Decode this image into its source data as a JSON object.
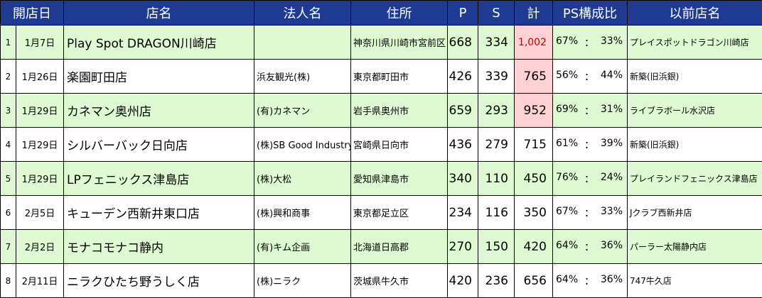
{
  "headers": {
    "date": "開店日",
    "name": "店名",
    "corp": "法人名",
    "addr": "住所",
    "p": "P",
    "s": "S",
    "total": "計",
    "ratio": "PS構成比",
    "prev": "以前店名"
  },
  "highlight_color": "#ffd0d4",
  "header_color": "#1f3a93",
  "row_tint": "#dff9d3",
  "rows": [
    {
      "idx": "1",
      "date": "1月7日",
      "name": "Play Spot DRAGON川崎店",
      "corp": "",
      "addr": "神奈川県川崎市宮前区",
      "p": "668",
      "s": "334",
      "total": "1,002",
      "pr": "67%",
      "sep": "：",
      "sr": "33%",
      "prev": "プレイスポットドラゴン川崎店"
    },
    {
      "idx": "2",
      "date": "1月26日",
      "name": "楽園町田店",
      "corp": "浜友観光(株)",
      "addr": "東京都町田市",
      "p": "426",
      "s": "339",
      "total": "765",
      "pr": "56%",
      "sep": "：",
      "sr": "44%",
      "prev": "新築(旧浜銀)"
    },
    {
      "idx": "3",
      "date": "1月29日",
      "name": "カネマン奥州店",
      "corp": "(有)カネマン",
      "addr": "岩手県奥州市",
      "p": "659",
      "s": "293",
      "total": "952",
      "pr": "69%",
      "sep": "：",
      "sr": "31%",
      "prev": "ライブラボール水沢店"
    },
    {
      "idx": "4",
      "date": "1月29日",
      "name": "シルバーバック日向店",
      "corp": "(株)SB Good Industry",
      "addr": "宮崎県日向市",
      "p": "436",
      "s": "279",
      "total": "715",
      "pr": "61%",
      "sep": "：",
      "sr": "39%",
      "prev": "新築(旧浜銀)"
    },
    {
      "idx": "5",
      "date": "1月29日",
      "name": "LPフェニックス津島店",
      "corp": "(株)大松",
      "addr": "愛知県津島市",
      "p": "340",
      "s": "110",
      "total": "450",
      "pr": "76%",
      "sep": "：",
      "sr": "24%",
      "prev": "プレイランドフェニックス津島店"
    },
    {
      "idx": "6",
      "date": "2月5日",
      "name": "キューデン西新井東口店",
      "corp": "(株)興和商事",
      "addr": "東京都足立区",
      "p": "234",
      "s": "116",
      "total": "350",
      "pr": "67%",
      "sep": "：",
      "sr": "33%",
      "prev": "Jクラブ西新井店"
    },
    {
      "idx": "7",
      "date": "2月2日",
      "name": "モナコモナコ静内",
      "corp": "(有)キム企画",
      "addr": "北海道日高郡",
      "p": "270",
      "s": "150",
      "total": "420",
      "pr": "64%",
      "sep": "：",
      "sr": "36%",
      "prev": "パーラー太陽静内店"
    },
    {
      "idx": "8",
      "date": "2月11日",
      "name": "ニラクひたち野うしく店",
      "corp": "(株)ニラク",
      "addr": "茨城県牛久市",
      "p": "420",
      "s": "236",
      "total": "656",
      "pr": "64%",
      "sep": "：",
      "sr": "36%",
      "prev": "747牛久店"
    }
  ]
}
